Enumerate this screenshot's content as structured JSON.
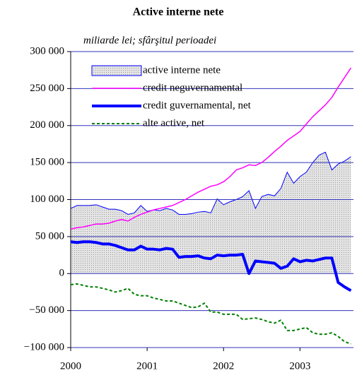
{
  "chart_data": {
    "type": "line",
    "title": "Active interne nete",
    "subtitle": "miliarde lei; sfârşitul perioadei",
    "x": [
      2000,
      2000.083,
      2000.167,
      2000.25,
      2000.333,
      2000.417,
      2000.5,
      2000.583,
      2000.667,
      2000.75,
      2000.833,
      2000.917,
      2001,
      2001.083,
      2001.167,
      2001.25,
      2001.333,
      2001.417,
      2001.5,
      2001.583,
      2001.667,
      2001.75,
      2001.833,
      2001.917,
      2002,
      2002.083,
      2002.167,
      2002.25,
      2002.333,
      2002.417,
      2002.5,
      2002.583,
      2002.667,
      2002.75,
      2002.833,
      2002.917,
      2003,
      2003.083,
      2003.167,
      2003.25,
      2003.333,
      2003.417,
      2003.5,
      2003.583,
      2003.667
    ],
    "xlim": [
      2000,
      2003.7
    ],
    "xticks": [
      2000,
      2001,
      2002,
      2003
    ],
    "ylim": [
      -100000,
      300000
    ],
    "yticks": [
      {
        "value": -100000,
        "label": "−100 000"
      },
      {
        "value": -50000,
        "label": "−50 000"
      },
      0,
      {
        "value": 50000,
        "label": "50 000"
      },
      {
        "value": 100000,
        "label": "100 000"
      },
      {
        "value": 150000,
        "label": "150 000"
      },
      {
        "value": 200000,
        "label": "200 000"
      },
      {
        "value": 250000,
        "label": "250 000"
      },
      {
        "value": 300000,
        "label": "300 000"
      }
    ],
    "grid": true,
    "legend": "upper left",
    "series": [
      {
        "name": "active interne nete",
        "type": "area",
        "color": "#0000ff",
        "fill": "#d9d9d9",
        "values": [
          88000,
          92000,
          92000,
          92000,
          93000,
          90000,
          87000,
          87000,
          85000,
          80000,
          82000,
          92000,
          84000,
          86000,
          85000,
          88000,
          86000,
          80000,
          80000,
          81000,
          83000,
          84000,
          82000,
          101000,
          93000,
          97000,
          100000,
          104000,
          112000,
          88000,
          104000,
          107000,
          105000,
          115000,
          137000,
          122000,
          131000,
          137000,
          150000,
          160000,
          164000,
          140000,
          148000,
          152000,
          158000
        ]
      },
      {
        "name": "credit neguvernamental",
        "type": "line",
        "color": "#ff00ff",
        "linewidth": 1.5,
        "values": [
          60000,
          62000,
          63000,
          65000,
          67000,
          67000,
          68000,
          71000,
          73000,
          71000,
          76000,
          80000,
          83000,
          86000,
          88000,
          90000,
          92000,
          96000,
          100000,
          105000,
          110000,
          114000,
          118000,
          120000,
          124000,
          131000,
          140000,
          143000,
          147000,
          146000,
          150000,
          157000,
          165000,
          172000,
          180000,
          186000,
          192000,
          202000,
          212000,
          220000,
          228000,
          238000,
          252000,
          265000,
          278000
        ]
      },
      {
        "name": "credit guvernamental, net",
        "type": "line",
        "color": "#0000ff",
        "linewidth": 4,
        "values": [
          43000,
          42000,
          43000,
          43000,
          42000,
          40000,
          40000,
          38000,
          35000,
          32000,
          32000,
          37000,
          33000,
          33000,
          32000,
          34000,
          33000,
          22000,
          23000,
          23000,
          24000,
          21000,
          20000,
          25000,
          24000,
          25000,
          25000,
          26000,
          0,
          17000,
          16000,
          15000,
          14000,
          7000,
          10000,
          20000,
          16000,
          18000,
          17000,
          19000,
          21000,
          21000,
          -12000,
          -18000,
          -23000
        ]
      },
      {
        "name": "alte active, net",
        "type": "line",
        "color": "#008000",
        "linewidth": 2,
        "linestyle": "dashed",
        "values": [
          -15000,
          -14000,
          -16000,
          -18000,
          -18000,
          -20000,
          -22000,
          -25000,
          -23000,
          -20000,
          -28000,
          -30000,
          -30000,
          -33000,
          -35000,
          -37000,
          -37000,
          -40000,
          -43000,
          -46000,
          -45000,
          -40000,
          -52000,
          -52000,
          -55000,
          -55000,
          -55000,
          -62000,
          -61000,
          -60000,
          -62000,
          -65000,
          -67000,
          -63000,
          -77000,
          -77000,
          -75000,
          -73000,
          -80000,
          -82000,
          -82000,
          -80000,
          -85000,
          -92000,
          -95000
        ]
      }
    ]
  }
}
